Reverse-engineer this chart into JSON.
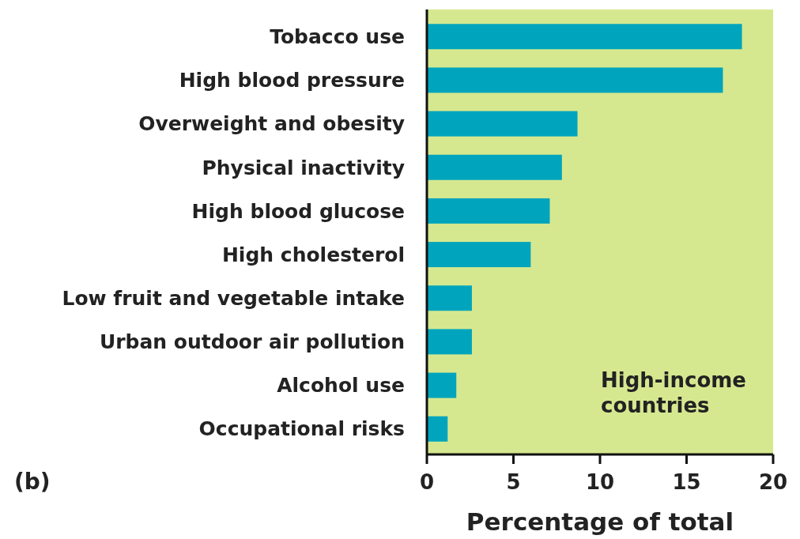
{
  "chart_data": {
    "type": "bar",
    "orientation": "horizontal",
    "categories": [
      "Tobacco use",
      "High blood pressure",
      "Overweight and obesity",
      "Physical inactivity",
      "High blood glucose",
      "High cholesterol",
      "Low fruit and vegetable intake",
      "Urban outdoor air pollution",
      "Alcohol use",
      "Occupational risks"
    ],
    "values": [
      18.2,
      17.1,
      8.7,
      7.8,
      7.1,
      6.0,
      2.6,
      2.6,
      1.7,
      1.2
    ],
    "color": "#00a5bd",
    "xlim": [
      0,
      20
    ],
    "xticks": [
      0,
      5,
      10,
      15,
      20
    ],
    "xlabel": "Percentage of total",
    "grid": false,
    "annotations": [
      "High-income countries",
      "(b)"
    ]
  }
}
